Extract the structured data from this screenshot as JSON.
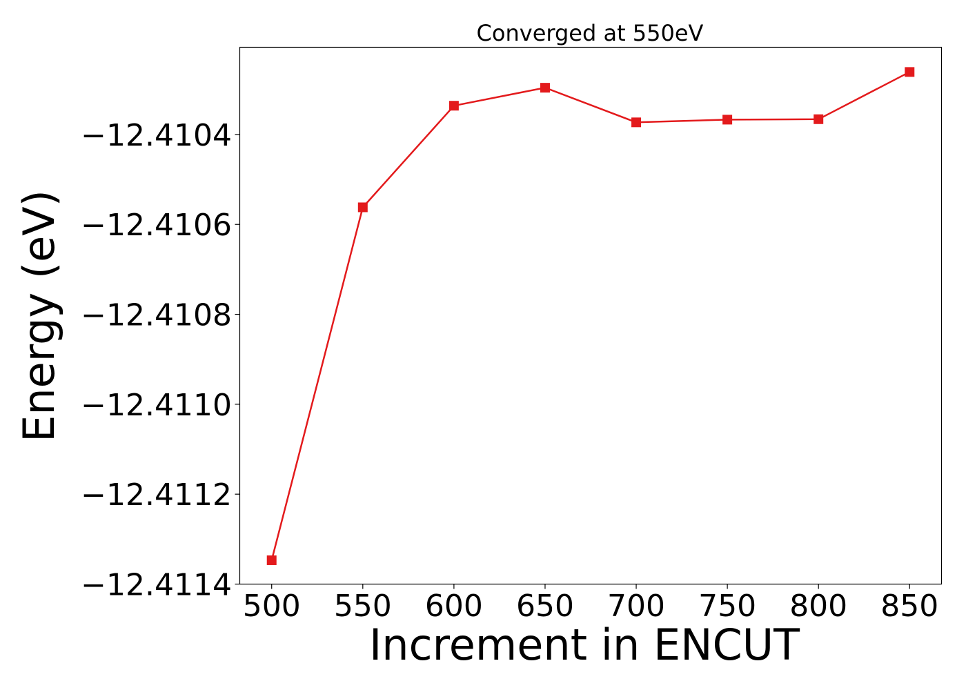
{
  "chart_data": {
    "type": "line",
    "title": "Converged at 550eV",
    "xlabel": "Increment in ENCUT",
    "ylabel": "Energy (eV)",
    "x": [
      500,
      550,
      600,
      650,
      700,
      750,
      800,
      850
    ],
    "series": [
      {
        "values": [
          -12.411347,
          -12.410562,
          -12.410336,
          -12.410296,
          -12.410373,
          -12.410367,
          -12.410366,
          -12.410261
        ],
        "color": "#e31a1c",
        "marker": "square"
      }
    ],
    "x_ticks": [
      500,
      550,
      600,
      650,
      700,
      750,
      800,
      850
    ],
    "x_tick_labels": [
      "500",
      "550",
      "600",
      "650",
      "700",
      "750",
      "800",
      "850"
    ],
    "y_ticks": [
      -12.4114,
      -12.4112,
      -12.411,
      -12.4108,
      -12.4106,
      -12.4104
    ],
    "y_tick_labels": [
      "−12.4114",
      "−12.4112",
      "−12.4110",
      "−12.4108",
      "−12.4106",
      "−12.4104"
    ],
    "xlim": [
      482.5,
      867.5
    ],
    "ylim": [
      -12.4114,
      -12.410206
    ],
    "grid": false,
    "legend": "none"
  }
}
